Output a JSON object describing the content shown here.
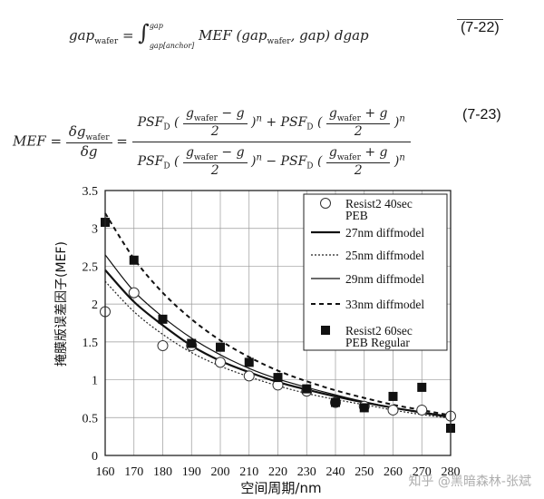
{
  "equations": {
    "eq1_label": "(7-22)",
    "eq2_label": "(7-23)"
  },
  "chart_data": {
    "type": "line",
    "xlabel": "空间周期/nm",
    "ylabel": "掩膜版误差因子(MEF)",
    "x_ticks": [
      160,
      170,
      180,
      190,
      200,
      210,
      220,
      230,
      240,
      250,
      260,
      270,
      280
    ],
    "y_ticks": [
      0,
      0.5,
      1,
      1.5,
      2,
      2.5,
      3,
      3.5
    ],
    "xlim": [
      160,
      280
    ],
    "ylim": [
      0,
      3.5
    ],
    "grid": true,
    "legend_position": "top-right",
    "legend_entries": [
      {
        "text": [
          "Resist2 40sec",
          "PEB"
        ],
        "style": "open-circle"
      },
      {
        "text": [
          "27nm diffmodel"
        ],
        "style": "solid-thick"
      },
      {
        "text": [
          "25nm diffmodel"
        ],
        "style": "dotted"
      },
      {
        "text": [
          "29nm diffmodel"
        ],
        "style": "solid-thin"
      },
      {
        "text": [
          "33nm diffmodel"
        ],
        "style": "dashed"
      },
      {
        "text": [
          "Resist2 60sec",
          "PEB Regular"
        ],
        "style": "filled-square"
      }
    ],
    "series": [
      {
        "name": "Resist2 40sec PEB",
        "style": "open-circle",
        "x": [
          160,
          170,
          180,
          190,
          200,
          210,
          220,
          230,
          240,
          250,
          260,
          270,
          280
        ],
        "y": [
          1.9,
          2.15,
          1.45,
          1.45,
          1.23,
          1.05,
          0.93,
          0.85,
          0.7,
          0.65,
          0.6,
          0.6,
          0.52
        ]
      },
      {
        "name": "27nm diffmodel",
        "style": "solid-thick",
        "x": [
          160,
          170,
          180,
          190,
          200,
          210,
          220,
          230,
          240,
          250,
          260,
          270,
          280
        ],
        "y": [
          2.45,
          2.03,
          1.72,
          1.45,
          1.25,
          1.1,
          0.97,
          0.87,
          0.78,
          0.7,
          0.63,
          0.57,
          0.51
        ]
      },
      {
        "name": "25nm diffmodel",
        "style": "dotted",
        "x": [
          160,
          170,
          180,
          190,
          200,
          210,
          220,
          230,
          240,
          250,
          260,
          270,
          280
        ],
        "y": [
          2.3,
          1.9,
          1.6,
          1.36,
          1.18,
          1.04,
          0.92,
          0.82,
          0.74,
          0.67,
          0.6,
          0.54,
          0.49
        ]
      },
      {
        "name": "29nm diffmodel",
        "style": "solid-thin",
        "x": [
          160,
          170,
          180,
          190,
          200,
          210,
          220,
          230,
          240,
          250,
          260,
          270,
          280
        ],
        "y": [
          2.65,
          2.17,
          1.83,
          1.55,
          1.33,
          1.15,
          1.01,
          0.9,
          0.8,
          0.71,
          0.63,
          0.56,
          0.5
        ]
      },
      {
        "name": "33nm diffmodel",
        "style": "dashed",
        "x": [
          160,
          170,
          180,
          190,
          200,
          210,
          220,
          230,
          240,
          250,
          260,
          270,
          280
        ],
        "y": [
          3.2,
          2.6,
          2.15,
          1.8,
          1.52,
          1.3,
          1.12,
          0.98,
          0.86,
          0.76,
          0.67,
          0.6,
          0.53
        ]
      },
      {
        "name": "Resist2 60sec PEB Regular",
        "style": "filled-square",
        "x": [
          160,
          170,
          180,
          190,
          200,
          210,
          220,
          230,
          240,
          250,
          260,
          270,
          280
        ],
        "y": [
          3.08,
          2.58,
          1.8,
          1.48,
          1.43,
          1.23,
          1.03,
          0.88,
          0.7,
          0.63,
          0.78,
          0.9,
          0.36
        ]
      }
    ]
  },
  "watermark": "知乎 @黑暗森林-张斌"
}
